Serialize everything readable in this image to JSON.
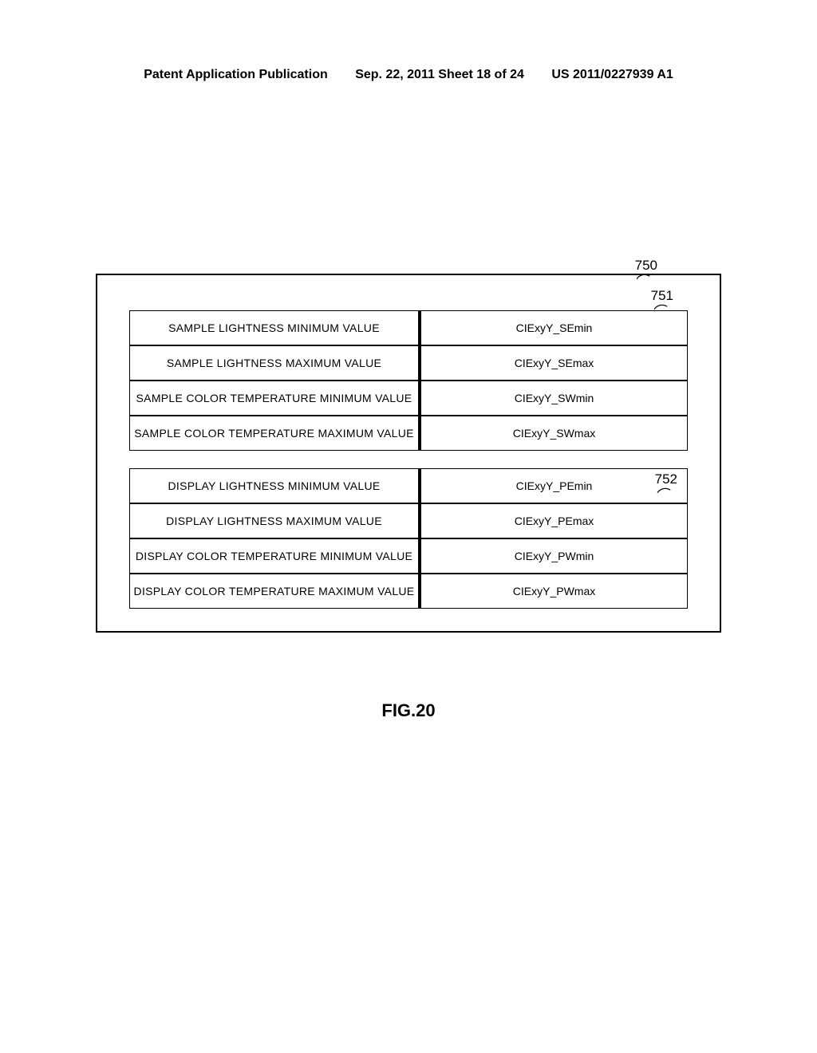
{
  "header": {
    "left": "Patent Application Publication",
    "center": "Sep. 22, 2011  Sheet 18 of 24",
    "right": "US 2011/0227939 A1"
  },
  "labels": {
    "outer": "750",
    "table1": "751",
    "table2": "752"
  },
  "table1": {
    "rows": [
      {
        "label": "SAMPLE LIGHTNESS MINIMUM VALUE",
        "value": "CIExyY_SEmin"
      },
      {
        "label": "SAMPLE LIGHTNESS MAXIMUM VALUE",
        "value": "CIExyY_SEmax"
      },
      {
        "label": "SAMPLE COLOR TEMPERATURE MINIMUM VALUE",
        "value": "CIExyY_SWmin"
      },
      {
        "label": "SAMPLE COLOR TEMPERATURE MAXIMUM VALUE",
        "value": "CIExyY_SWmax"
      }
    ]
  },
  "table2": {
    "rows": [
      {
        "label": "DISPLAY LIGHTNESS MINIMUM VALUE",
        "value": "CIExyY_PEmin"
      },
      {
        "label": "DISPLAY LIGHTNESS MAXIMUM VALUE",
        "value": "CIExyY_PEmax"
      },
      {
        "label": "DISPLAY COLOR TEMPERATURE MINIMUM VALUE",
        "value": "CIExyY_PWmin"
      },
      {
        "label": "DISPLAY COLOR TEMPERATURE MAXIMUM VALUE",
        "value": "CIExyY_PWmax"
      }
    ]
  },
  "figure": "FIG.20"
}
